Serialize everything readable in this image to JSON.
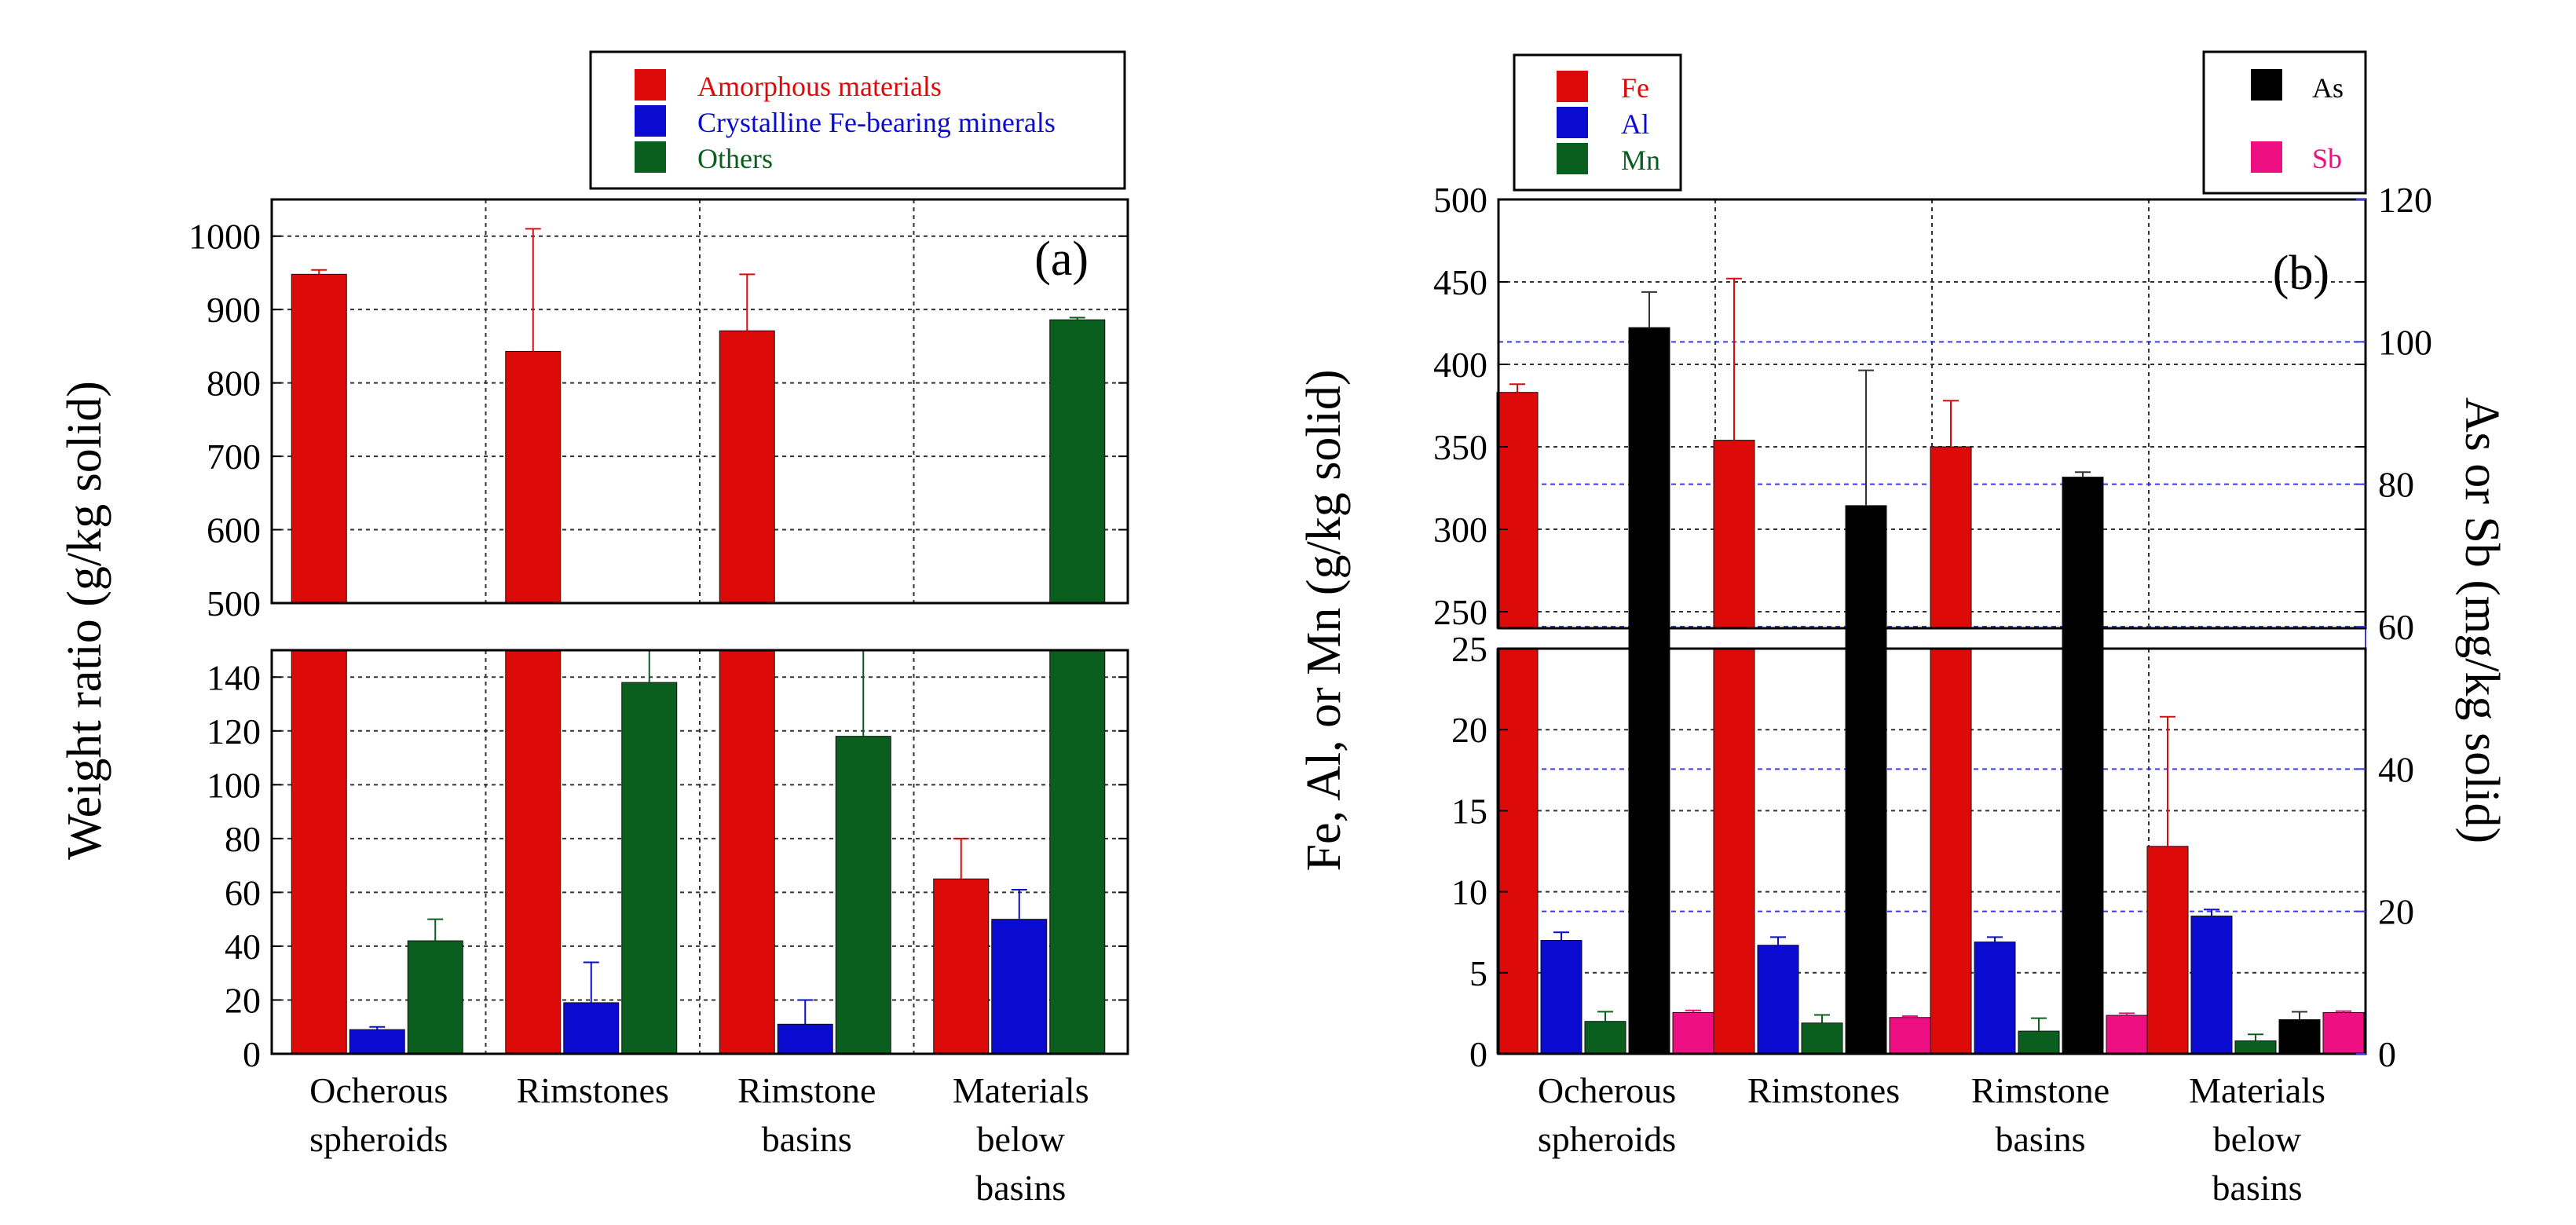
{
  "chart_data": [
    {
      "type": "bar",
      "panel_label": "(a)",
      "ylabel": "Weight ratio (g/kg solid)",
      "categories": [
        [
          "Ocherous",
          "spheroids"
        ],
        [
          "Rimstones"
        ],
        [
          "Rimstone",
          "basins"
        ],
        [
          "Materials",
          "below",
          "basins"
        ]
      ],
      "y_break": {
        "upper_range": [
          500,
          1050
        ],
        "lower_range": [
          0,
          150
        ],
        "upper_ticks": [
          500,
          600,
          700,
          800,
          900,
          1000
        ],
        "lower_ticks": [
          0,
          20,
          40,
          60,
          80,
          100,
          120,
          140
        ]
      },
      "legend": [
        "Amorphous materials",
        "Crystalline Fe-bearing minerals",
        "Others"
      ],
      "series": [
        {
          "name": "Amorphous materials",
          "color": "#dd0a0a",
          "values": [
            948,
            843,
            871,
            65
          ],
          "errors": [
            6,
            167,
            77,
            15
          ]
        },
        {
          "name": "Crystalline Fe-bearing minerals",
          "color": "#0a0ad0",
          "values": [
            9,
            19,
            11,
            50
          ],
          "errors": [
            1,
            15,
            9,
            11
          ]
        },
        {
          "name": "Others",
          "color": "#0a5f1e",
          "values": [
            42,
            138,
            118,
            886
          ],
          "errors": [
            8,
            20,
            60,
            3
          ]
        }
      ]
    },
    {
      "type": "bar",
      "panel_label": "(b)",
      "ylabel": "Fe, Al, or Mn (g/kg solid)",
      "y2label": "As or Sb (mg/kg solid)",
      "categories": [
        [
          "Ocherous",
          "spheroids"
        ],
        [
          "Rimstones"
        ],
        [
          "Rimstone",
          "basins"
        ],
        [
          "Materials",
          "below",
          "basins"
        ]
      ],
      "y_break": {
        "upper_range": [
          240,
          500
        ],
        "lower_range": [
          0,
          25
        ],
        "upper_ticks": [
          250,
          300,
          350,
          400,
          450,
          500
        ],
        "lower_ticks": [
          0,
          5,
          10,
          15,
          20,
          25
        ]
      },
      "y2_range": [
        0,
        120
      ],
      "y2_ticks": [
        0,
        20,
        40,
        60,
        80,
        100,
        120
      ],
      "legend_left": [
        "Fe",
        "Al",
        "Mn"
      ],
      "legend_right": [
        "As",
        "Sb"
      ],
      "series": [
        {
          "name": "Fe",
          "axis": "left",
          "color": "#dd0a0a",
          "values": [
            383,
            354,
            350,
            12.8
          ],
          "errors": [
            5,
            98,
            28,
            8
          ]
        },
        {
          "name": "Al",
          "axis": "left",
          "color": "#0a0ad0",
          "values": [
            7.0,
            6.7,
            6.9,
            8.5
          ],
          "errors": [
            0.5,
            0.5,
            0.3,
            0.4
          ]
        },
        {
          "name": "Mn",
          "axis": "left",
          "color": "#0a5f1e",
          "values": [
            2.0,
            1.9,
            1.4,
            0.8
          ],
          "errors": [
            0.6,
            0.5,
            0.8,
            0.4
          ]
        },
        {
          "name": "As",
          "axis": "right",
          "color": "#000000",
          "values": [
            102,
            77,
            81,
            4.8
          ],
          "errors": [
            5,
            19,
            0.7,
            1.1
          ]
        },
        {
          "name": "Sb",
          "axis": "right",
          "color": "#ee0f82",
          "values": [
            5.8,
            5.1,
            5.4,
            5.8
          ],
          "errors": [
            0.3,
            0.2,
            0.3,
            0.2
          ]
        }
      ]
    }
  ]
}
